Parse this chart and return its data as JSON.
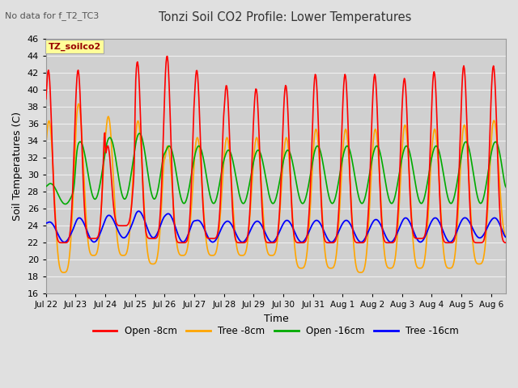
{
  "title": "Tonzi Soil CO2 Profile: Lower Temperatures",
  "subtitle": "No data for f_T2_TC3",
  "xlabel": "Time",
  "ylabel": "Soil Temperatures (C)",
  "ylim": [
    16,
    46
  ],
  "yticks": [
    16,
    18,
    20,
    22,
    24,
    26,
    28,
    30,
    32,
    34,
    36,
    38,
    40,
    42,
    44,
    46
  ],
  "x_labels": [
    "Jul 22",
    "Jul 23",
    "Jul 24",
    "Jul 25",
    "Jul 26",
    "Jul 27",
    "Jul 28",
    "Jul 29",
    "Jul 30",
    "Jul 31",
    "Aug 1",
    "Aug 2",
    "Aug 3",
    "Aug 4",
    "Aug 5",
    "Aug 6"
  ],
  "legend_label": "TZ_soilco2",
  "series_labels": [
    "Open -8cm",
    "Tree -8cm",
    "Open -16cm",
    "Tree -16cm"
  ],
  "series_colors": [
    "#ff0000",
    "#ffa500",
    "#00aa00",
    "#0000ff"
  ],
  "background_color": "#e0e0e0",
  "plot_bg_color": "#d0d0d0",
  "grid_color": "#f0f0f0",
  "n_days": 15.5,
  "ppd": 48,
  "open8_peaks": [
    42.5,
    42.5,
    33.5,
    43.5,
    44.2,
    42.5,
    40.7,
    40.3,
    40.7,
    42.0,
    42.0,
    42.0,
    41.5,
    42.3,
    43.0,
    43.0
  ],
  "open8_troughs": [
    22.0,
    22.5,
    24.0,
    22.5,
    22.0,
    22.5,
    22.0,
    22.0,
    22.0,
    22.0,
    22.0,
    22.0,
    22.5,
    22.0,
    22.0,
    22.0
  ],
  "tree8_peaks": [
    36.5,
    38.5,
    37.0,
    36.5,
    33.5,
    34.5,
    34.5,
    34.5,
    34.5,
    35.5,
    35.5,
    35.5,
    36.0,
    35.5,
    36.0,
    36.5
  ],
  "tree8_troughs": [
    18.5,
    20.5,
    20.5,
    19.5,
    20.5,
    20.5,
    20.5,
    20.5,
    19.0,
    19.0,
    18.5,
    19.0,
    19.0,
    19.0,
    19.5,
    22.5
  ],
  "open16_peaks": [
    29.0,
    34.0,
    34.5,
    35.0,
    33.5,
    33.5,
    33.0,
    33.0,
    33.0,
    33.5,
    33.5,
    33.5,
    33.5,
    33.5,
    34.0,
    34.0
  ],
  "open16_troughs": [
    26.5,
    27.0,
    27.0,
    27.0,
    26.5,
    26.5,
    26.5,
    26.5,
    26.5,
    26.5,
    26.5,
    26.5,
    26.5,
    26.5,
    26.5,
    26.5
  ],
  "tree16_peaks": [
    24.5,
    25.0,
    25.3,
    25.8,
    25.5,
    24.7,
    24.6,
    24.6,
    24.7,
    24.7,
    24.7,
    24.8,
    25.0,
    25.0,
    25.0,
    25.0
  ],
  "tree16_troughs": [
    22.0,
    22.0,
    22.5,
    22.5,
    22.0,
    22.0,
    22.0,
    22.0,
    22.0,
    22.0,
    22.0,
    22.0,
    22.0,
    22.0,
    22.5,
    22.0
  ],
  "peak_phase": 0.55,
  "figsize": [
    6.4,
    4.8
  ],
  "dpi": 100
}
